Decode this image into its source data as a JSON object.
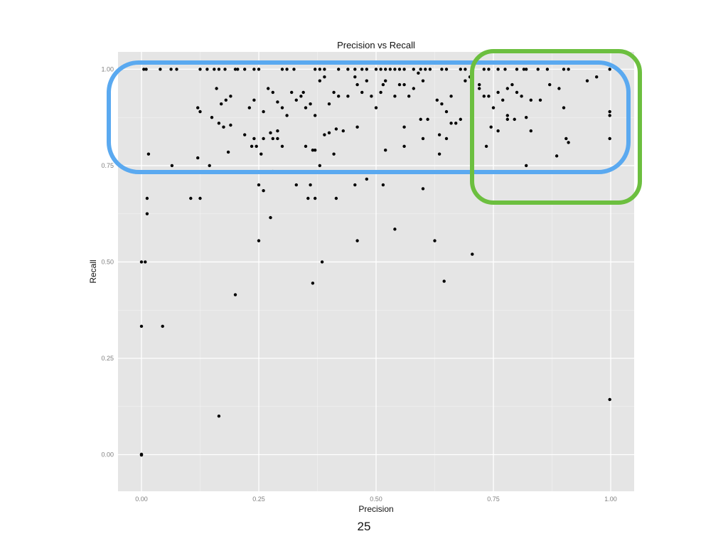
{
  "slide": {
    "number": "25"
  },
  "chart_data": {
    "type": "scatter",
    "title": "Precision vs Recall",
    "xlabel": "Precision",
    "ylabel": "Recall",
    "xlim": [
      -0.05,
      1.05
    ],
    "ylim": [
      -0.095,
      1.045
    ],
    "x_ticks": [
      "0.00",
      "0.25",
      "0.50",
      "0.75",
      "1.00"
    ],
    "y_ticks": [
      "0.00",
      "0.25",
      "0.50",
      "0.75",
      "1.00"
    ],
    "x_tick_values": [
      0,
      0.25,
      0.5,
      0.75,
      1
    ],
    "y_tick_values": [
      0,
      0.25,
      0.5,
      0.75,
      1
    ],
    "grid": true,
    "background": "#e5e5e5",
    "point_color": "#000000",
    "highlight_colors": {
      "recall_band": "#5aa9f0",
      "high_precision_region": "#6cbf3f"
    },
    "points": [
      [
        0.005,
        1.0
      ],
      [
        0.01,
        1.0
      ],
      [
        0.04,
        1.0
      ],
      [
        0.063,
        1.0
      ],
      [
        0.075,
        1.0
      ],
      [
        0.125,
        1.0
      ],
      [
        0.14,
        1.0
      ],
      [
        0.155,
        1.0
      ],
      [
        0.165,
        1.0
      ],
      [
        0.178,
        1.0
      ],
      [
        0.2,
        1.0
      ],
      [
        0.205,
        1.0
      ],
      [
        0.22,
        1.0
      ],
      [
        0.24,
        1.0
      ],
      [
        0.25,
        1.0
      ],
      [
        0.3,
        1.0
      ],
      [
        0.31,
        1.0
      ],
      [
        0.325,
        1.0
      ],
      [
        0.37,
        1.0
      ],
      [
        0.38,
        1.0
      ],
      [
        0.39,
        1.0
      ],
      [
        0.42,
        1.0
      ],
      [
        0.44,
        1.0
      ],
      [
        0.455,
        1.0
      ],
      [
        0.47,
        1.0
      ],
      [
        0.48,
        1.0
      ],
      [
        0.5,
        1.0
      ],
      [
        0.51,
        1.0
      ],
      [
        0.52,
        1.0
      ],
      [
        0.53,
        1.0
      ],
      [
        0.54,
        1.0
      ],
      [
        0.55,
        1.0
      ],
      [
        0.56,
        1.0
      ],
      [
        0.58,
        1.0
      ],
      [
        0.595,
        1.0
      ],
      [
        0.605,
        1.0
      ],
      [
        0.615,
        1.0
      ],
      [
        0.64,
        1.0
      ],
      [
        0.65,
        1.0
      ],
      [
        0.68,
        1.0
      ],
      [
        0.69,
        1.0
      ],
      [
        0.73,
        1.0
      ],
      [
        0.74,
        1.0
      ],
      [
        0.76,
        1.0
      ],
      [
        0.775,
        1.0
      ],
      [
        0.8,
        1.0
      ],
      [
        0.815,
        1.0
      ],
      [
        0.82,
        1.0
      ],
      [
        0.845,
        1.0
      ],
      [
        0.865,
        1.0
      ],
      [
        0.9,
        1.0
      ],
      [
        0.91,
        1.0
      ],
      [
        0.998,
        1.0
      ],
      [
        0.12,
        0.9
      ],
      [
        0.125,
        0.89
      ],
      [
        0.15,
        0.875
      ],
      [
        0.16,
        0.95
      ],
      [
        0.17,
        0.91
      ],
      [
        0.18,
        0.92
      ],
      [
        0.19,
        0.93
      ],
      [
        0.165,
        0.86
      ],
      [
        0.175,
        0.85
      ],
      [
        0.19,
        0.855
      ],
      [
        0.23,
        0.9
      ],
      [
        0.24,
        0.92
      ],
      [
        0.26,
        0.89
      ],
      [
        0.27,
        0.95
      ],
      [
        0.28,
        0.94
      ],
      [
        0.29,
        0.915
      ],
      [
        0.3,
        0.9
      ],
      [
        0.31,
        0.88
      ],
      [
        0.32,
        0.94
      ],
      [
        0.33,
        0.92
      ],
      [
        0.34,
        0.93
      ],
      [
        0.345,
        0.94
      ],
      [
        0.35,
        0.9
      ],
      [
        0.36,
        0.91
      ],
      [
        0.37,
        0.88
      ],
      [
        0.38,
        0.97
      ],
      [
        0.39,
        0.98
      ],
      [
        0.4,
        0.91
      ],
      [
        0.41,
        0.94
      ],
      [
        0.42,
        0.93
      ],
      [
        0.44,
        0.93
      ],
      [
        0.455,
        0.98
      ],
      [
        0.46,
        0.96
      ],
      [
        0.47,
        0.94
      ],
      [
        0.48,
        0.97
      ],
      [
        0.49,
        0.93
      ],
      [
        0.5,
        0.9
      ],
      [
        0.51,
        0.94
      ],
      [
        0.515,
        0.96
      ],
      [
        0.52,
        0.97
      ],
      [
        0.54,
        0.93
      ],
      [
        0.55,
        0.96
      ],
      [
        0.56,
        0.96
      ],
      [
        0.57,
        0.93
      ],
      [
        0.58,
        0.95
      ],
      [
        0.59,
        0.99
      ],
      [
        0.6,
        0.97
      ],
      [
        0.61,
        0.87
      ],
      [
        0.63,
        0.92
      ],
      [
        0.64,
        0.91
      ],
      [
        0.65,
        0.89
      ],
      [
        0.66,
        0.93
      ],
      [
        0.67,
        0.86
      ],
      [
        0.68,
        0.87
      ],
      [
        0.69,
        0.97
      ],
      [
        0.7,
        0.98
      ],
      [
        0.72,
        0.95
      ],
      [
        0.73,
        0.93
      ],
      [
        0.74,
        0.93
      ],
      [
        0.75,
        0.9
      ],
      [
        0.76,
        0.94
      ],
      [
        0.77,
        0.92
      ],
      [
        0.78,
        0.95
      ],
      [
        0.79,
        0.96
      ],
      [
        0.8,
        0.94
      ],
      [
        0.81,
        0.93
      ],
      [
        0.83,
        0.92
      ],
      [
        0.85,
        0.92
      ],
      [
        0.87,
        0.96
      ],
      [
        0.89,
        0.95
      ],
      [
        0.9,
        0.9
      ],
      [
        0.97,
        0.98
      ],
      [
        0.95,
        0.97
      ],
      [
        0.24,
        0.82
      ],
      [
        0.22,
        0.83
      ],
      [
        0.26,
        0.82
      ],
      [
        0.275,
        0.835
      ],
      [
        0.28,
        0.82
      ],
      [
        0.29,
        0.84
      ],
      [
        0.35,
        0.8
      ],
      [
        0.37,
        0.79
      ],
      [
        0.39,
        0.83
      ],
      [
        0.4,
        0.835
      ],
      [
        0.415,
        0.845
      ],
      [
        0.43,
        0.84
      ],
      [
        0.46,
        0.85
      ],
      [
        0.56,
        0.8
      ],
      [
        0.6,
        0.82
      ],
      [
        0.635,
        0.83
      ],
      [
        0.66,
        0.86
      ],
      [
        0.735,
        0.8
      ],
      [
        0.745,
        0.85
      ],
      [
        0.76,
        0.84
      ],
      [
        0.78,
        0.88
      ],
      [
        0.83,
        0.84
      ],
      [
        0.91,
        0.81
      ],
      [
        0.998,
        0.89
      ],
      [
        0.998,
        0.88
      ],
      [
        0.998,
        0.82
      ],
      [
        0.885,
        0.775
      ],
      [
        0.015,
        0.78
      ],
      [
        0.185,
        0.785
      ],
      [
        0.235,
        0.8
      ],
      [
        0.245,
        0.8
      ],
      [
        0.255,
        0.78
      ],
      [
        0.29,
        0.82
      ],
      [
        0.3,
        0.8
      ],
      [
        0.365,
        0.79
      ],
      [
        0.41,
        0.78
      ],
      [
        0.52,
        0.79
      ],
      [
        0.56,
        0.85
      ],
      [
        0.595,
        0.87
      ],
      [
        0.635,
        0.78
      ],
      [
        0.65,
        0.82
      ],
      [
        0.72,
        0.96
      ],
      [
        0.78,
        0.87
      ],
      [
        0.795,
        0.87
      ],
      [
        0.82,
        0.875
      ],
      [
        0.905,
        0.82
      ],
      [
        0.12,
        0.77
      ],
      [
        0.065,
        0.75
      ],
      [
        0.145,
        0.75
      ],
      [
        0.38,
        0.75
      ],
      [
        0.82,
        0.75
      ],
      [
        0.28,
        0.735
      ],
      [
        0.25,
        0.7
      ],
      [
        0.26,
        0.685
      ],
      [
        0.33,
        0.7
      ],
      [
        0.36,
        0.7
      ],
      [
        0.105,
        0.665
      ],
      [
        0.125,
        0.665
      ],
      [
        0.355,
        0.665
      ],
      [
        0.37,
        0.665
      ],
      [
        0.415,
        0.665
      ],
      [
        0.012,
        0.665
      ],
      [
        0.455,
        0.7
      ],
      [
        0.48,
        0.715
      ],
      [
        0.515,
        0.7
      ],
      [
        0.6,
        0.69
      ],
      [
        0.275,
        0.615
      ],
      [
        0.012,
        0.625
      ],
      [
        0.25,
        0.555
      ],
      [
        0.46,
        0.555
      ],
      [
        0.54,
        0.585
      ],
      [
        0.625,
        0.555
      ],
      [
        0.705,
        0.52
      ],
      [
        0.0,
        0.5
      ],
      [
        0.008,
        0.5
      ],
      [
        0.385,
        0.5
      ],
      [
        0.365,
        0.445
      ],
      [
        0.645,
        0.45
      ],
      [
        0.2,
        0.415
      ],
      [
        0.0,
        0.333
      ],
      [
        0.045,
        0.333
      ],
      [
        0.165,
        0.1
      ],
      [
        0.998,
        0.143
      ],
      [
        0.0,
        0.0
      ],
      [
        0.0,
        0.001
      ],
      [
        0.0,
        -0.001
      ]
    ]
  }
}
